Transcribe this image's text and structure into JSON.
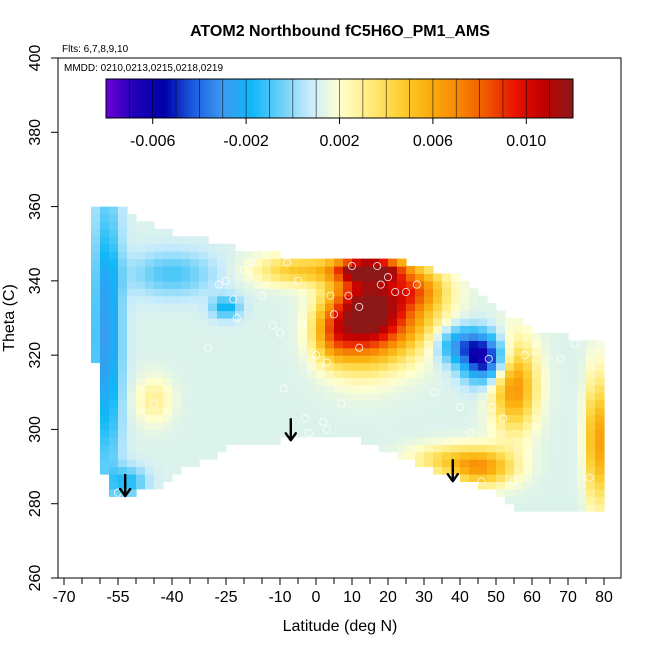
{
  "chart_data": {
    "type": "heatmap",
    "title": "ATOM2 Northbound fC5H6O_PM1_AMS",
    "flights_note": "Flts: 6,7,8,9,10",
    "dates_note": "MMDD: 0210,0213,0215,0218,0219",
    "xlabel": "Latitude (deg N)",
    "ylabel": "Theta (C)",
    "xlim": [
      -70,
      80
    ],
    "ylim": [
      260,
      400
    ],
    "x_major_ticks": [
      -70,
      -55,
      -40,
      -25,
      -10,
      0,
      10,
      20,
      30,
      40,
      50,
      60,
      70,
      80
    ],
    "x_minor_ticks": [
      -65,
      -60,
      -50,
      -45,
      -35,
      -30,
      -20,
      -15,
      -5,
      5,
      15,
      25,
      35,
      45,
      55,
      65,
      75
    ],
    "y_ticks": [
      260,
      280,
      300,
      320,
      340,
      360,
      380,
      400
    ],
    "colorbar": {
      "min": -0.008,
      "max": 0.012,
      "tick_values": [
        -0.006,
        -0.002,
        0.002,
        0.006,
        0.01
      ],
      "tick_labels": [
        "-0.006",
        "-0.002",
        "0.002",
        "0.006",
        "0.010"
      ],
      "divisions": [
        -0.008,
        -0.007,
        -0.006,
        -0.005,
        -0.004,
        -0.003,
        -0.002,
        -0.001,
        0,
        0.001,
        0.002,
        0.003,
        0.004,
        0.005,
        0.006,
        0.007,
        0.008,
        0.009,
        0.01,
        0.011,
        0.012
      ],
      "colors": [
        "#6a00d8",
        "#1e00b8",
        "#0000a8",
        "#1c5ce0",
        "#3b9af0",
        "#10b8f8",
        "#6cd0f8",
        "#c8ecfc",
        "#ffffd0",
        "#ffec80",
        "#fdd238",
        "#fbb010",
        "#f88a04",
        "#f05a00",
        "#e81400",
        "#c00000",
        "#8c1818"
      ]
    },
    "envelope": {
      "upper": [
        [
          -63,
          360
        ],
        [
          -55,
          360
        ],
        [
          -50,
          357
        ],
        [
          -45,
          355
        ],
        [
          -40,
          353
        ],
        [
          -35,
          352
        ],
        [
          -30,
          351
        ],
        [
          -25,
          350
        ],
        [
          -20,
          348
        ],
        [
          -10,
          347
        ],
        [
          0,
          346
        ],
        [
          10,
          346
        ],
        [
          20,
          346
        ],
        [
          30,
          344
        ],
        [
          40,
          341
        ],
        [
          50,
          334
        ],
        [
          55,
          330
        ],
        [
          60,
          327
        ],
        [
          70,
          325
        ],
        [
          80,
          323
        ]
      ],
      "lower": [
        [
          80,
          277
        ],
        [
          75,
          278
        ],
        [
          70,
          278
        ],
        [
          60,
          278
        ],
        [
          55,
          278
        ],
        [
          50,
          283
        ],
        [
          45,
          285
        ],
        [
          40,
          287
        ],
        [
          30,
          290
        ],
        [
          20,
          294
        ],
        [
          10,
          298
        ],
        [
          0,
          299
        ],
        [
          -10,
          297
        ],
        [
          -20,
          297
        ],
        [
          -35,
          290
        ],
        [
          -45,
          284
        ],
        [
          -50,
          283
        ],
        [
          -55,
          282
        ],
        [
          -58,
          282
        ]
      ],
      "left": [
        [
          -58,
          282
        ],
        [
          -60,
          300
        ],
        [
          -62,
          330
        ],
        [
          -63,
          360
        ]
      ]
    },
    "anomalies": [
      {
        "lat": 13,
        "theta": 332,
        "value": 0.0095,
        "rx": 9,
        "ry": 13
      },
      {
        "lat": 15,
        "theta": 343,
        "value": 0.0105,
        "rx": 9,
        "ry": 3
      },
      {
        "lat": 22,
        "theta": 331,
        "value": 0.0072,
        "rx": 12,
        "ry": 11
      },
      {
        "lat": 5,
        "theta": 326,
        "value": 0.0058,
        "rx": 6,
        "ry": 8
      },
      {
        "lat": 28,
        "theta": 338,
        "value": 0.005,
        "rx": 8,
        "ry": 5
      },
      {
        "lat": -5,
        "theta": 343,
        "value": 0.0048,
        "rx": 12,
        "ry": 4
      },
      {
        "lat": 47,
        "theta": 319,
        "value": -0.006,
        "rx": 6,
        "ry": 6
      },
      {
        "lat": 40,
        "theta": 323,
        "value": -0.003,
        "rx": 7,
        "ry": 5
      },
      {
        "lat": 55,
        "theta": 312,
        "value": 0.0068,
        "rx": 6,
        "ry": 12
      },
      {
        "lat": 78,
        "theta": 297,
        "value": 0.0065,
        "rx": 3,
        "ry": 17
      },
      {
        "lat": 46,
        "theta": 290,
        "value": 0.0062,
        "rx": 9,
        "ry": 5
      },
      {
        "lat": 35,
        "theta": 292,
        "value": 0.0035,
        "rx": 10,
        "ry": 4
      },
      {
        "lat": -58,
        "theta": 325,
        "value": -0.003,
        "rx": 4,
        "ry": 38
      },
      {
        "lat": -45,
        "theta": 308,
        "value": 0.003,
        "rx": 5,
        "ry": 6
      },
      {
        "lat": -52,
        "theta": 286,
        "value": -0.0015,
        "rx": 5,
        "ry": 4
      },
      {
        "lat": -25,
        "theta": 333,
        "value": -0.002,
        "rx": 4,
        "ry": 3
      },
      {
        "lat": -40,
        "theta": 342,
        "value": -0.001,
        "rx": 12,
        "ry": 6
      }
    ],
    "base_value": 0.0012,
    "points": [
      [
        -55,
        283
      ],
      [
        -45,
        307
      ],
      [
        -30,
        322
      ],
      [
        -27,
        339
      ],
      [
        -25,
        340
      ],
      [
        -23,
        335
      ],
      [
        -22,
        330
      ],
      [
        -20,
        343
      ],
      [
        -18,
        345
      ],
      [
        -15,
        336
      ],
      [
        -12,
        328
      ],
      [
        -10,
        326
      ],
      [
        -9,
        311
      ],
      [
        -8,
        345
      ],
      [
        -5,
        340
      ],
      [
        -4,
        328
      ],
      [
        -3,
        303
      ],
      [
        -2,
        299
      ],
      [
        0,
        320
      ],
      [
        2,
        302
      ],
      [
        3,
        300
      ],
      [
        3,
        318
      ],
      [
        4,
        336
      ],
      [
        5,
        331
      ],
      [
        7,
        307
      ],
      [
        9,
        336
      ],
      [
        10,
        344
      ],
      [
        12,
        322
      ],
      [
        12,
        333
      ],
      [
        14,
        294
      ],
      [
        17,
        344
      ],
      [
        18,
        339
      ],
      [
        20,
        341
      ],
      [
        22,
        337
      ],
      [
        25,
        337
      ],
      [
        28,
        339
      ],
      [
        33,
        310
      ],
      [
        40,
        306
      ],
      [
        43,
        299
      ],
      [
        46,
        286
      ],
      [
        48,
        319
      ],
      [
        49,
        306
      ],
      [
        52,
        303
      ],
      [
        55,
        286
      ],
      [
        58,
        320
      ],
      [
        68,
        319
      ],
      [
        72,
        323
      ],
      [
        76,
        287
      ],
      [
        79,
        323
      ]
    ],
    "arrows": [
      {
        "lat": -53,
        "theta": 288
      },
      {
        "lat": -7,
        "theta": 303
      },
      {
        "lat": 38,
        "theta": 292
      }
    ]
  }
}
